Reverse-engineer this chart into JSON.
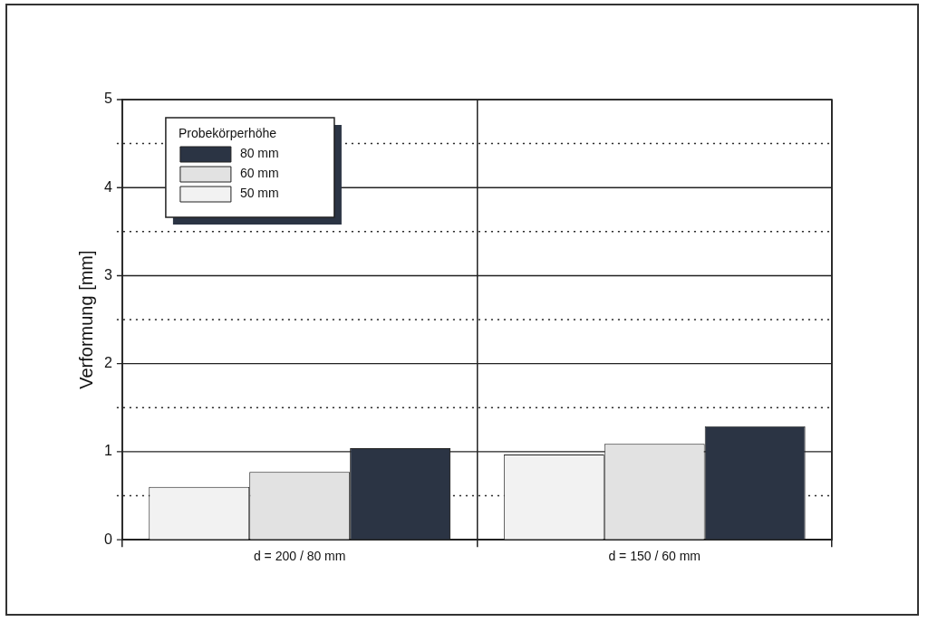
{
  "chart_data": {
    "type": "bar",
    "ylabel": "Verformung [mm]",
    "legend_title": "Probekörperhöhe",
    "categories": [
      "d = 200 / 80 mm",
      "d = 150 / 60 mm"
    ],
    "series": [
      {
        "name": "50 mm",
        "color": "#f2f2f2",
        "values": [
          0.6,
          0.97
        ]
      },
      {
        "name": "60 mm",
        "color": "#e2e2e2",
        "values": [
          0.77,
          1.09
        ]
      },
      {
        "name": "80 mm",
        "color": "#2b3444",
        "values": [
          1.04,
          1.29
        ]
      }
    ],
    "ylim": [
      0,
      5
    ],
    "yticks": [
      0,
      {
        "value": 0.5,
        "label": null
      },
      1,
      {
        "value": 1.5,
        "label": null
      },
      2,
      {
        "value": 2.5,
        "label": null
      },
      3,
      {
        "value": 3.5,
        "label": null
      },
      4,
      {
        "value": 4.5,
        "label": null
      },
      5
    ],
    "grid": true,
    "legend": "top left"
  }
}
